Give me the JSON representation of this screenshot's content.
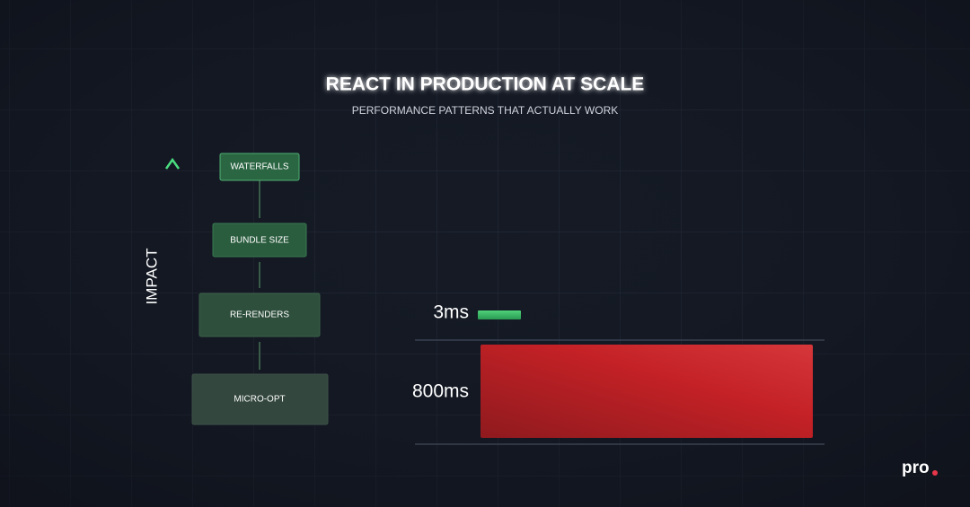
{
  "header": {
    "title": "REACT IN PRODUCTION AT SCALE",
    "subtitle": "PERFORMANCE PATTERNS THAT ACTUALLY WORK"
  },
  "impact_ladder": {
    "axis_label": "IMPACT",
    "levels": [
      "WATERFALLS",
      "BUNDLE SIZE",
      "RE-RENDERS",
      "MICRO-OPT"
    ]
  },
  "comparison": {
    "items": [
      {
        "label": "3ms"
      },
      {
        "label": "800ms"
      }
    ]
  },
  "logo": "pro"
}
